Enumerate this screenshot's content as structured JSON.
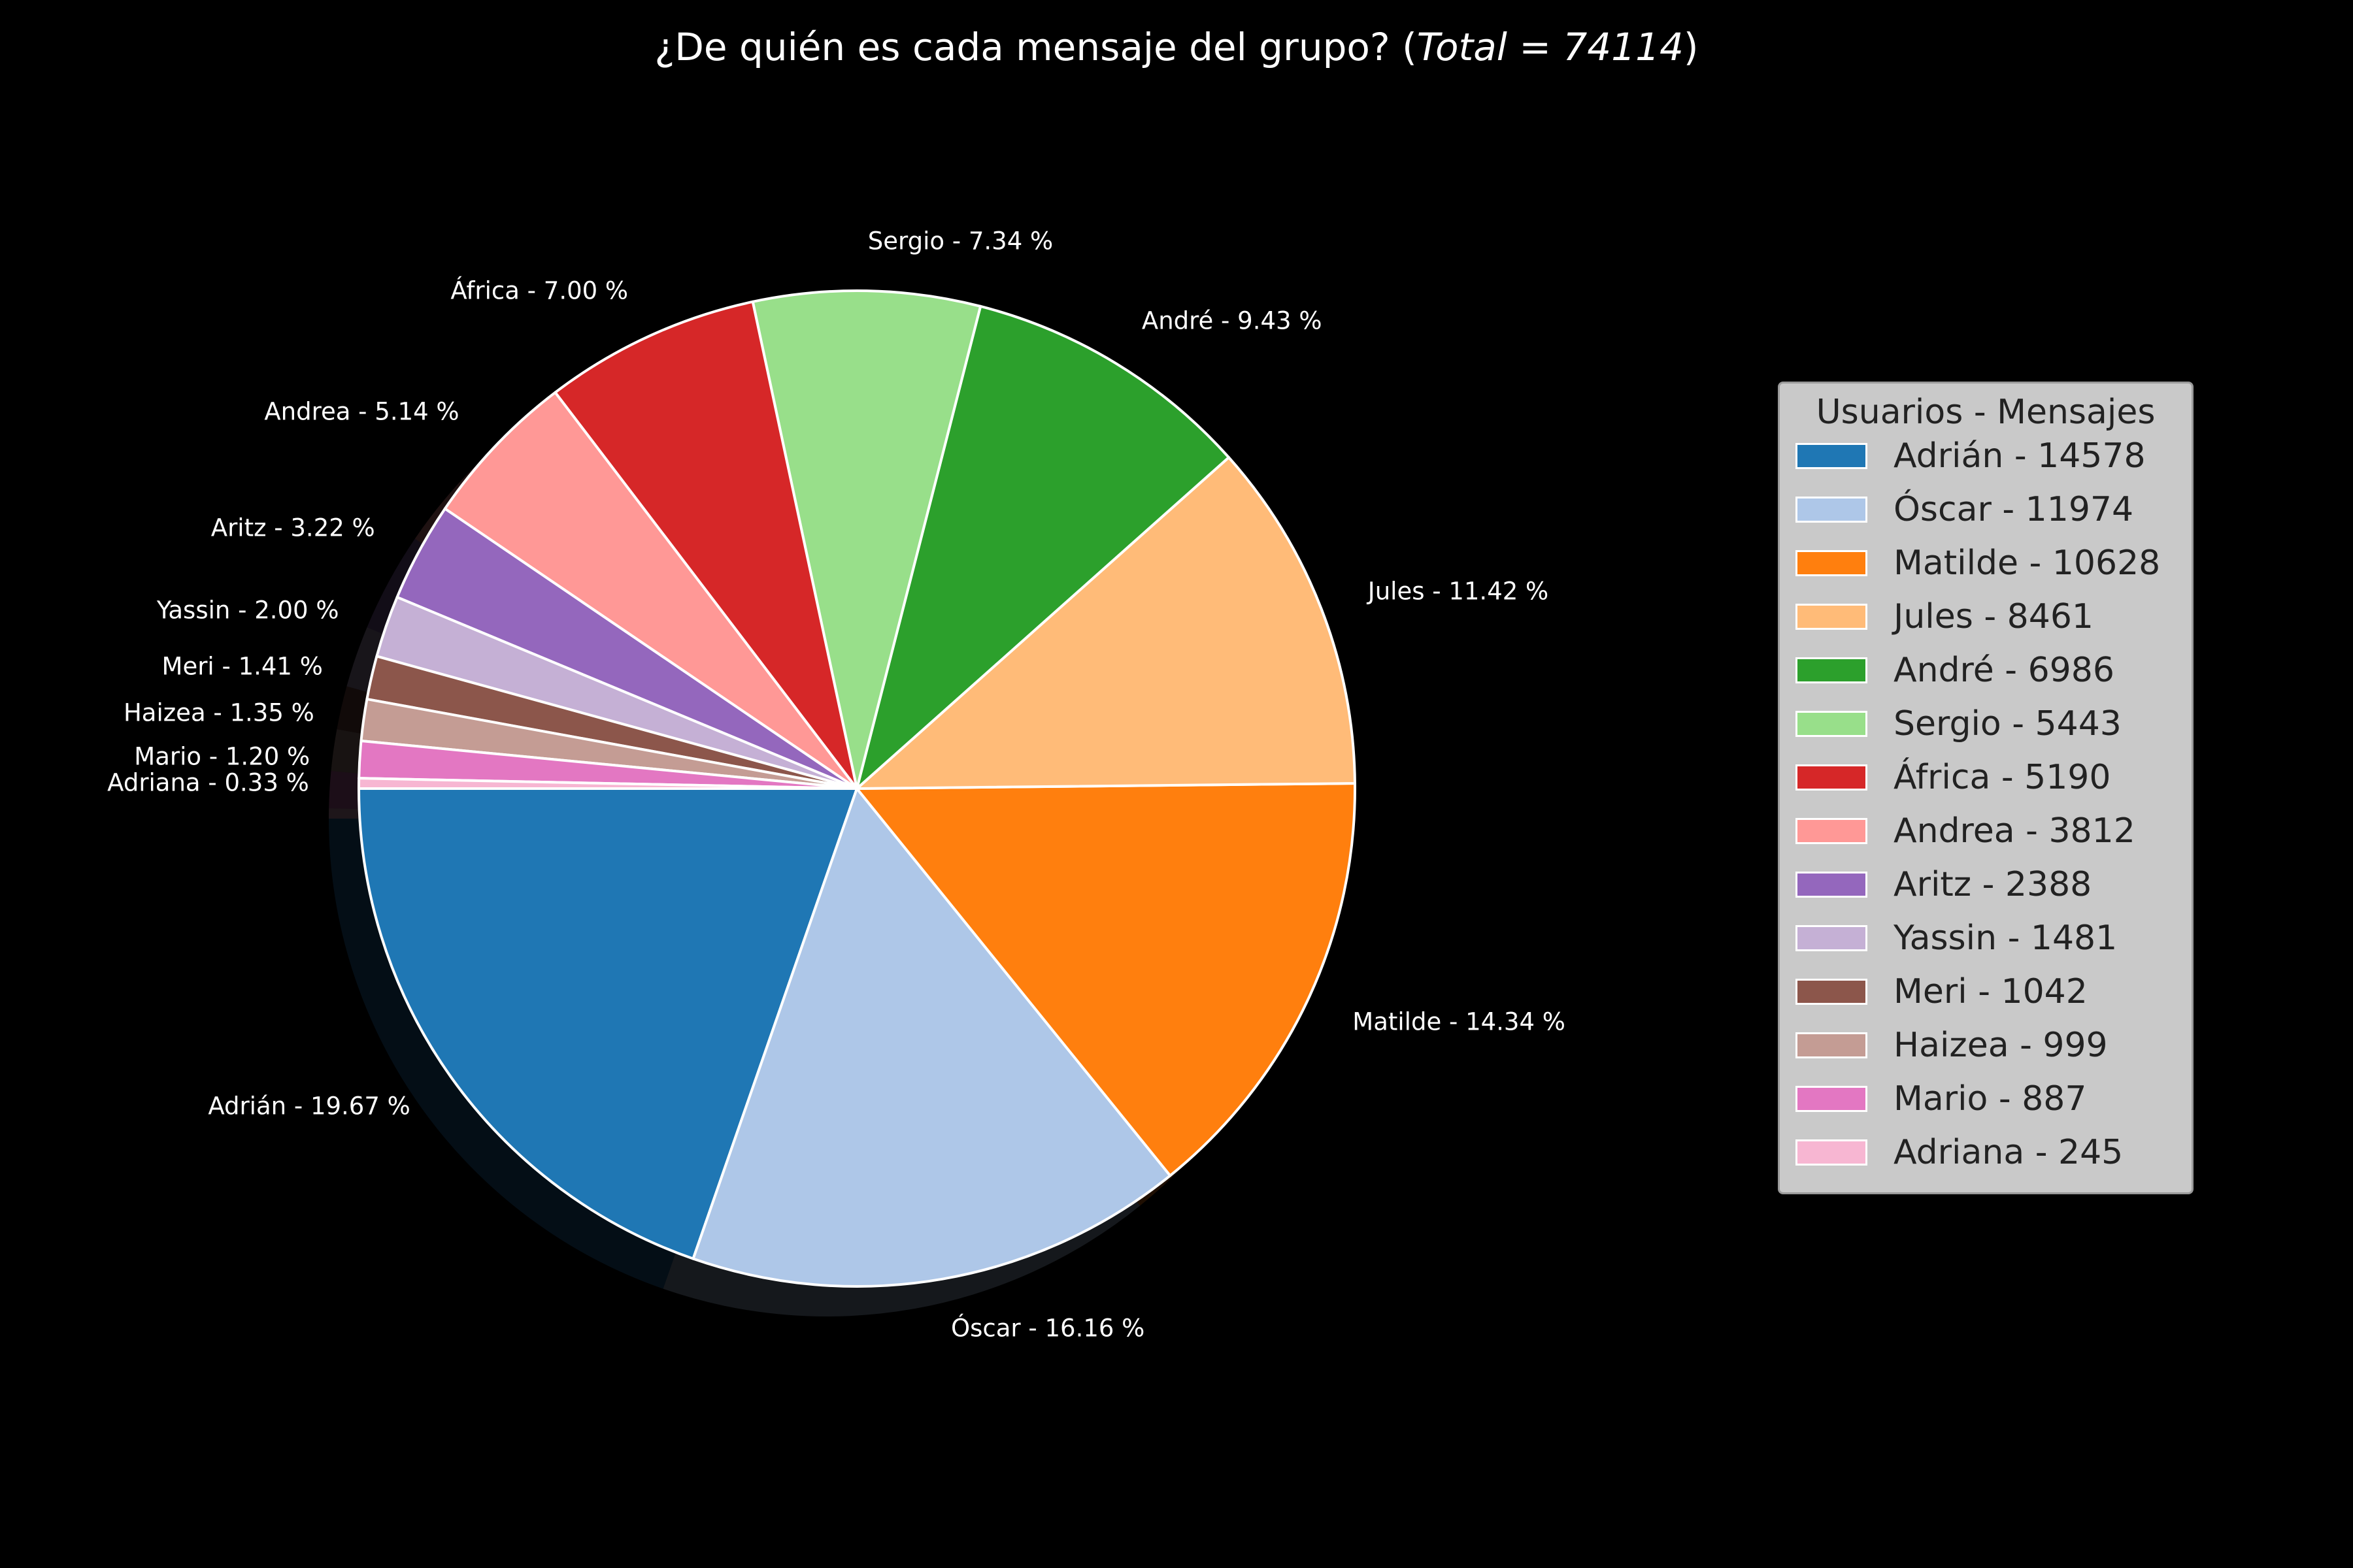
{
  "chart_data": {
    "type": "pie",
    "title": "¿De quién es cada mensaje del grupo? (",
    "title_total": "Total = 74114",
    "title_end": ")",
    "startangle": 180,
    "direction": "counterclockwise",
    "shadow": true,
    "slices": [
      {
        "name": "Adrián",
        "value": 14578,
        "label": "Adrián - 19.67 %",
        "legend": "Adrián - 14578",
        "color": "#1f77b4"
      },
      {
        "name": "Óscar",
        "value": 11974,
        "label": "Óscar - 16.16 %",
        "legend": "Óscar - 11974",
        "color": "#aec7e8"
      },
      {
        "name": "Matilde",
        "value": 10628,
        "label": "Matilde - 14.34 %",
        "legend": "Matilde - 10628",
        "color": "#ff7f0e"
      },
      {
        "name": "Jules",
        "value": 8461,
        "label": "Jules - 11.42 %",
        "legend": "Jules - 8461",
        "color": "#ffbb78"
      },
      {
        "name": "André",
        "value": 6986,
        "label": "André - 9.43 %",
        "legend": "André - 6986",
        "color": "#2ca02c"
      },
      {
        "name": "Sergio",
        "value": 5443,
        "label": "Sergio - 7.34 %",
        "legend": "Sergio - 5443",
        "color": "#98df8a"
      },
      {
        "name": "África",
        "value": 5190,
        "label": "África - 7.00 %",
        "legend": "África - 5190",
        "color": "#d62728"
      },
      {
        "name": "Andrea",
        "value": 3812,
        "label": "Andrea - 5.14 %",
        "legend": "Andrea - 3812",
        "color": "#ff9896"
      },
      {
        "name": "Aritz",
        "value": 2388,
        "label": "Aritz - 3.22 %",
        "legend": "Aritz - 2388",
        "color": "#9467bd"
      },
      {
        "name": "Yassin",
        "value": 1481,
        "label": "Yassin - 2.00 %",
        "legend": "Yassin - 1481",
        "color": "#c5b0d5"
      },
      {
        "name": "Meri",
        "value": 1042,
        "label": "Meri - 1.41 %",
        "legend": "Meri - 1042",
        "color": "#8c564b"
      },
      {
        "name": "Haizea",
        "value": 999,
        "label": "Haizea - 1.35 %",
        "legend": "Haizea - 999",
        "color": "#c49c94"
      },
      {
        "name": "Mario",
        "value": 887,
        "label": "Mario - 1.20 %",
        "legend": "Mario - 887",
        "color": "#e377c2"
      },
      {
        "name": "Adriana",
        "value": 245,
        "label": "Adriana - 0.33 %",
        "legend": "Adriana - 245",
        "color": "#f7b6d2"
      }
    ],
    "legend": {
      "title": "Usuarios - Mensajes",
      "placement": "right"
    }
  }
}
